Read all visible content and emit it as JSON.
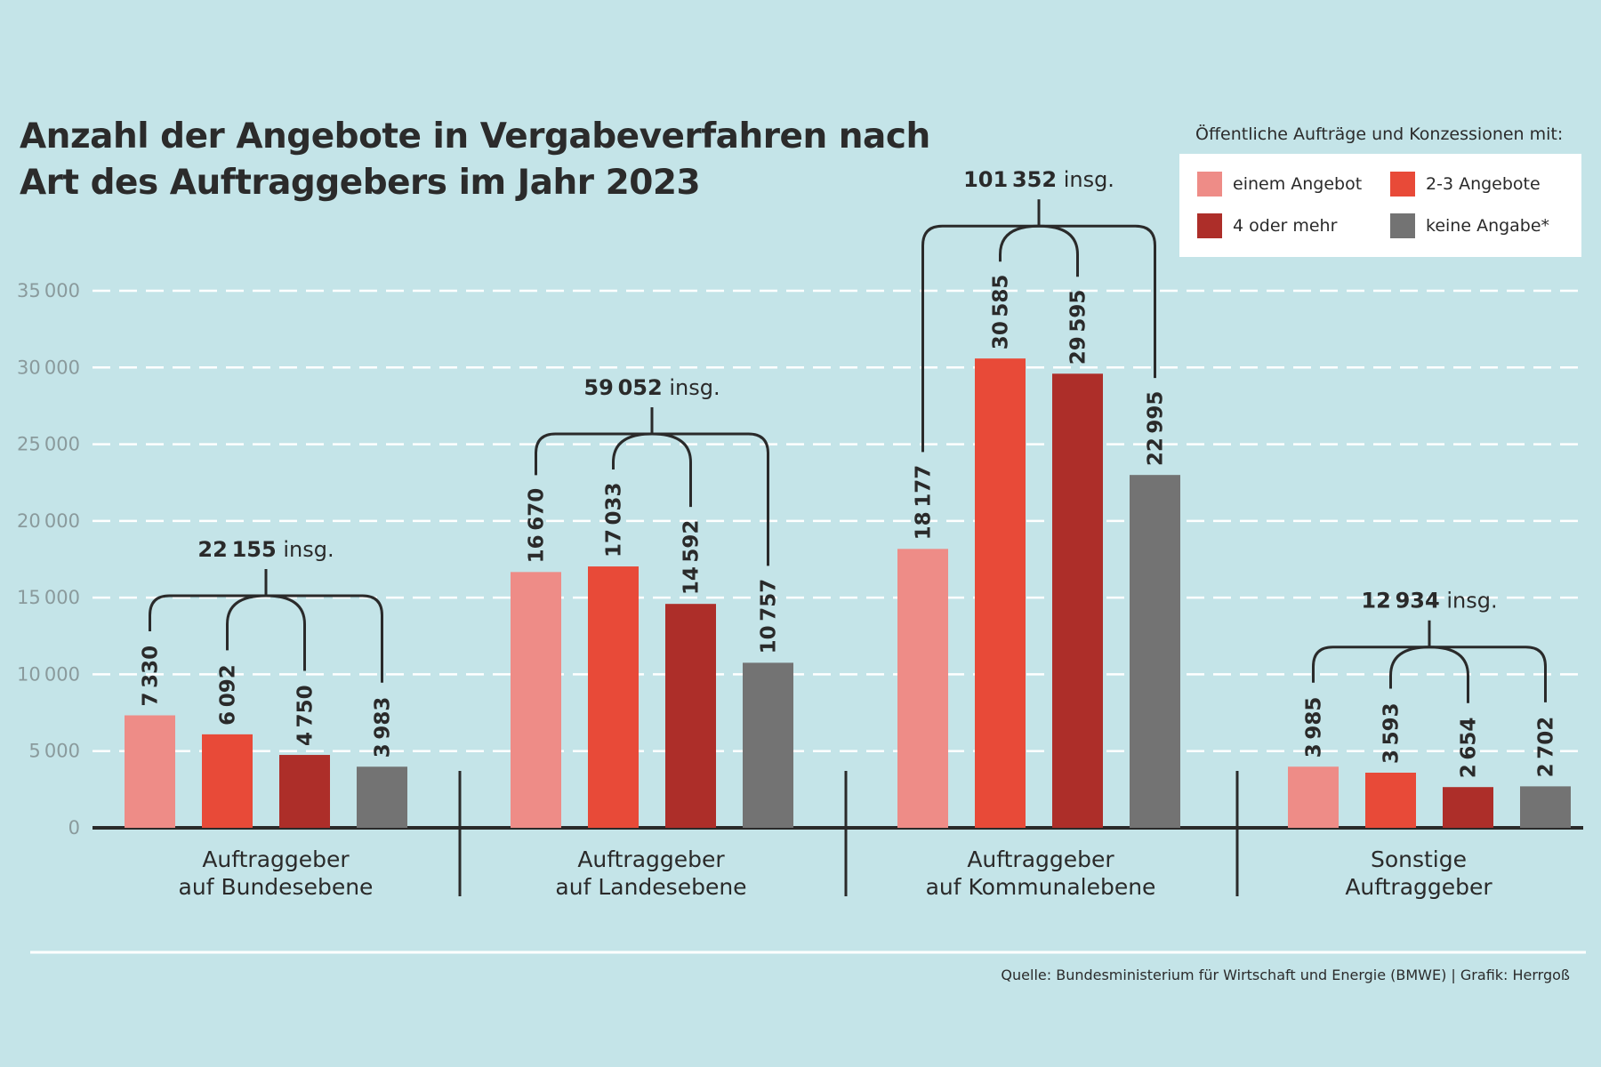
{
  "chart_data": {
    "type": "bar",
    "title": "Anzahl der Angebote in Vergabeverfahren nach Art des Auftraggebers im Jahr 2023",
    "title_lines": [
      "Anzahl der Angebote in Vergabeverfahren nach",
      "Art des Auftraggebers im Jahr 2023"
    ],
    "categories": [
      [
        "Auftraggeber",
        "auf Bundesebene"
      ],
      [
        "Auftraggeber",
        "auf Landesebene"
      ],
      [
        "Auftraggeber",
        "auf Kommunalebene"
      ],
      [
        "Sonstige",
        "Auftraggeber"
      ]
    ],
    "legend_title": "Öffentliche Aufträge und Konzessionen mit:",
    "legend_placement": "top-right",
    "series": [
      {
        "name": "einem Angebot",
        "color": "#ee8c87",
        "values": [
          7330,
          16670,
          18177,
          3985
        ]
      },
      {
        "name": "2-3 Angebote",
        "color": "#e84a38",
        "values": [
          6092,
          17033,
          30585,
          3593
        ]
      },
      {
        "name": "4 oder mehr",
        "color": "#ad2e29",
        "values": [
          4750,
          14592,
          29595,
          2654
        ]
      },
      {
        "name": "keine Angabe*",
        "color": "#737373",
        "values": [
          3983,
          10757,
          22995,
          2702
        ]
      }
    ],
    "totals": [
      22155,
      59052,
      101352,
      12934
    ],
    "totals_suffix": "insg.",
    "ylim": [
      0,
      35000
    ],
    "yticks": [
      0,
      5000,
      10000,
      15000,
      20000,
      25000,
      30000,
      35000
    ],
    "grid": true,
    "xlabel": "",
    "ylabel": ""
  },
  "source": "Quelle: Bundesministerium für Wirtschaft und Energie (BMWE) |  Grafik: Herrgoß",
  "colors": {
    "background": "#c4e4e8",
    "grid": "#ffffff",
    "axis": "#2a2a2a"
  }
}
